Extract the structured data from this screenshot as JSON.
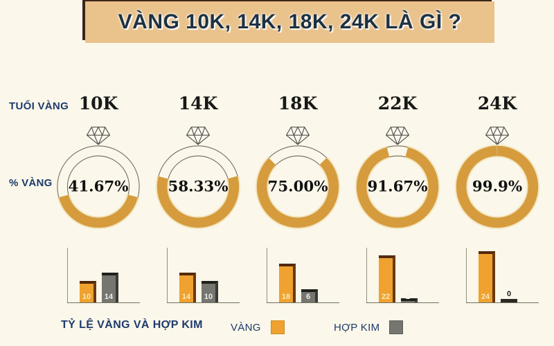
{
  "title": "VÀNG 10K, 14K, 18K, 24K LÀ GÌ ?",
  "labels": {
    "age_row": "TUỔI VÀNG",
    "percent_row": "% VÀNG"
  },
  "footer": {
    "title": "TỶ LỆ VÀNG VÀ HỢP KIM",
    "legend": [
      {
        "label": "VÀNG",
        "color": "#efa22f"
      },
      {
        "label": "HỢP KIM",
        "color": "#75766f"
      }
    ]
  },
  "colors": {
    "background": "#fbf7ea",
    "banner_bg": "#e9c28c",
    "banner_text": "#1d3141",
    "navy": "#1e3a6c",
    "ring_gold": "#d59b3d",
    "ring_glow": "#f2e4bb",
    "ring_outline": "#6f6a5c",
    "bar_gold": "#efa22f",
    "bar_alloy": "#75766f"
  },
  "chart_data": {
    "type": "bar",
    "title": "TỶ LỆ VÀNG VÀ HỢP KIM",
    "categories": [
      "10K",
      "14K",
      "18K",
      "22K",
      "24K"
    ],
    "series": [
      {
        "name": "VÀNG",
        "color": "#efa22f",
        "values": [
          10,
          14,
          18,
          22,
          24
        ]
      },
      {
        "name": "HỢP KIM",
        "color": "#75766f",
        "values": [
          14,
          10,
          6,
          2,
          0
        ]
      }
    ],
    "gold_percent_labels": [
      "41.67%",
      "58.33%",
      "75.00%",
      "91.67%",
      "99.9%"
    ],
    "columns": [
      {
        "karat": "10K",
        "percent_label": "41.67%",
        "percent": 41.67,
        "gold_parts": 10,
        "alloy_parts": 14
      },
      {
        "karat": "14K",
        "percent_label": "58.33%",
        "percent": 58.33,
        "gold_parts": 14,
        "alloy_parts": 10
      },
      {
        "karat": "18K",
        "percent_label": "75.00%",
        "percent": 75.0,
        "gold_parts": 18,
        "alloy_parts": 6
      },
      {
        "karat": "22K",
        "percent_label": "91.67%",
        "percent": 91.67,
        "gold_parts": 22,
        "alloy_parts": 2
      },
      {
        "karat": "24K",
        "percent_label": "99.9%",
        "percent": 99.9,
        "gold_parts": 24,
        "alloy_parts": 0
      }
    ]
  }
}
